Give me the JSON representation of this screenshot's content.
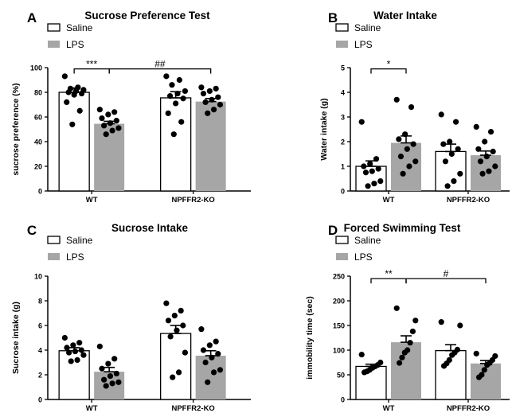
{
  "legend": {
    "saline": "Saline",
    "lps": "LPS"
  },
  "colors": {
    "saline_fill": "#ffffff",
    "lps_fill": "#a6a6a6",
    "stroke": "#000000",
    "dot": "#000000"
  },
  "chart_data": [
    {
      "type": "bar",
      "letter": "A",
      "title": "Sucrose Preference Test",
      "ylabel": "sucrose preference (%)",
      "xlabel": "",
      "categories": [
        "WT",
        "NPFFR2-KO"
      ],
      "ylim": [
        0,
        100
      ],
      "yticks": [
        "0",
        "20",
        "40",
        "60",
        "80",
        "100"
      ],
      "show_legend": true,
      "series": [
        {
          "name": "Saline",
          "values": [
            80,
            75.5
          ],
          "sem": [
            3.5,
            5
          ],
          "points": [
            [
              93,
              84,
              83,
              82,
              81,
              80,
              79,
              78,
              72,
              65,
              54
            ],
            [
              93,
              90,
              86,
              81,
              79,
              77,
              75,
              71,
              63,
              56,
              46
            ]
          ]
        },
        {
          "name": "LPS",
          "values": [
            54.5,
            72.5
          ],
          "sem": [
            2,
            2.5
          ],
          "points": [
            [
              66,
              64,
              62,
              59,
              57,
              55,
              53,
              51,
              49,
              46
            ],
            [
              84,
              83,
              81,
              79,
              76,
              74,
              72,
              70,
              66,
              63
            ]
          ]
        }
      ],
      "significance": [
        {
          "label": "***",
          "from": [
            0,
            0
          ],
          "to": [
            0,
            1
          ],
          "y": 99
        },
        {
          "label": "##",
          "from": [
            0,
            1
          ],
          "to": [
            1,
            1
          ],
          "y": 99
        }
      ]
    },
    {
      "type": "bar",
      "letter": "B",
      "title": "Water Intake",
      "ylabel": "Water intake (g)",
      "xlabel": "",
      "categories": [
        "WT",
        "NPFFR2-KO"
      ],
      "ylim": [
        0,
        5
      ],
      "yticks": [
        "0",
        "1",
        "2",
        "3",
        "4",
        "5"
      ],
      "show_legend": true,
      "series": [
        {
          "name": "Saline",
          "values": [
            1.0,
            1.6
          ],
          "sem": [
            0.22,
            0.3
          ],
          "points": [
            [
              2.8,
              1.3,
              1.1,
              1.0,
              0.9,
              0.8,
              0.75,
              0.4,
              0.3,
              0.2
            ],
            [
              3.1,
              2.8,
              2.0,
              1.9,
              1.7,
              1.5,
              1.2,
              0.7,
              0.4,
              0.2
            ]
          ]
        },
        {
          "name": "LPS",
          "values": [
            1.95,
            1.45
          ],
          "sem": [
            0.28,
            0.17
          ],
          "points": [
            [
              3.7,
              3.4,
              2.3,
              2.1,
              1.9,
              1.7,
              1.4,
              1.2,
              1.0,
              0.7
            ],
            [
              2.6,
              2.4,
              2.0,
              1.7,
              1.6,
              1.4,
              1.2,
              1.0,
              0.8,
              0.7
            ]
          ]
        }
      ],
      "significance": [
        {
          "label": "*",
          "from": [
            0,
            0
          ],
          "to": [
            0,
            1
          ],
          "y": 4.95
        }
      ]
    },
    {
      "type": "bar",
      "letter": "C",
      "title": "Sucrose Intake",
      "ylabel": "Sucrose intake (g)",
      "xlabel": "",
      "categories": [
        "WT",
        "NPFFR2-KO"
      ],
      "ylim": [
        0,
        10
      ],
      "yticks": [
        "0",
        "2",
        "4",
        "6",
        "8",
        "10"
      ],
      "show_legend": true,
      "series": [
        {
          "name": "Saline",
          "values": [
            3.95,
            5.35
          ],
          "sem": [
            0.25,
            0.65
          ],
          "points": [
            [
              5.0,
              4.6,
              4.4,
              4.2,
              4.0,
              3.9,
              3.8,
              3.6,
              3.2,
              3.1
            ],
            [
              7.8,
              7.2,
              6.8,
              6.4,
              6.0,
              5.6,
              5.1,
              3.8,
              2.2,
              1.8
            ]
          ]
        },
        {
          "name": "LPS",
          "values": [
            2.25,
            3.55
          ],
          "sem": [
            0.35,
            0.4
          ],
          "points": [
            [
              4.3,
              3.3,
              2.9,
              2.5,
              2.1,
              1.9,
              1.6,
              1.4,
              1.3,
              1.1
            ],
            [
              5.7,
              4.7,
              4.4,
              4.0,
              3.7,
              3.4,
              3.0,
              2.4,
              2.2,
              1.4
            ]
          ]
        }
      ],
      "significance": []
    },
    {
      "type": "bar",
      "letter": "D",
      "title": "Forced Swimming Test",
      "ylabel": "immobility time (sec)",
      "xlabel": "",
      "categories": [
        "WT",
        "NPFFR2-KO"
      ],
      "ylim": [
        0,
        250
      ],
      "yticks": [
        "0",
        "50",
        "100",
        "150",
        "200",
        "250"
      ],
      "show_legend": true,
      "series": [
        {
          "name": "Saline",
          "values": [
            67,
            99
          ],
          "sem": [
            4.5,
            12
          ],
          "points": [
            [
              91,
              75,
              70,
              67,
              64,
              60,
              57,
              55
            ],
            [
              157,
              150,
              101,
              95,
              90,
              80,
              73,
              68
            ]
          ]
        },
        {
          "name": "LPS",
          "values": [
            116,
            73
          ],
          "sem": [
            13,
            6
          ],
          "points": [
            [
              185,
              160,
              138,
              115,
              100,
              95,
              85,
              74
            ],
            [
              93,
              88,
              80,
              74,
              70,
              60,
              50,
              45
            ]
          ]
        }
      ],
      "significance": [
        {
          "label": "**",
          "from": [
            0,
            0
          ],
          "to": [
            0,
            1
          ],
          "y": 245
        },
        {
          "label": "#",
          "from": [
            0,
            1
          ],
          "to": [
            1,
            1
          ],
          "y": 245
        }
      ]
    }
  ]
}
